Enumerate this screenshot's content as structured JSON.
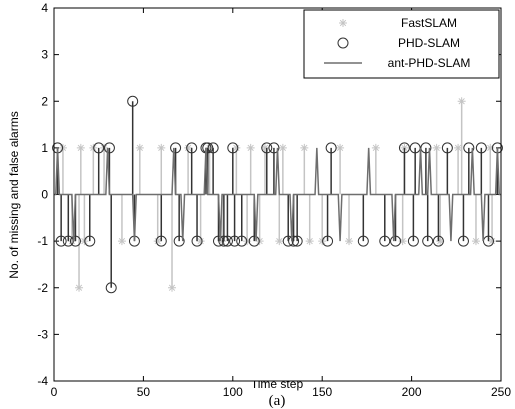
{
  "chart_data": {
    "type": "stem",
    "xlabel": "Time step",
    "ylabel": "No. of missing and false alarms",
    "caption": "(a)",
    "xlim": [
      0,
      250
    ],
    "xticks": [
      0,
      50,
      100,
      150,
      200,
      250
    ],
    "ylim": [
      -4,
      4
    ],
    "yticks": [
      -4,
      -3,
      -2,
      -1,
      0,
      1,
      2,
      3,
      4
    ],
    "legend": "top-right",
    "series": [
      {
        "name": "FastSLAM",
        "type": "stem",
        "marker": "asterisk",
        "color": "#c4c4c4",
        "x": [
          5,
          10,
          14,
          15,
          17,
          22,
          28,
          38,
          48,
          58,
          60,
          66,
          75,
          82,
          87,
          94,
          102,
          108,
          110,
          115,
          118,
          126,
          128,
          140,
          143,
          150,
          160,
          165,
          180,
          195,
          196,
          214,
          216,
          226,
          228,
          236,
          244,
          245
        ],
        "values": [
          1,
          -1,
          -2,
          1,
          -1,
          1,
          1,
          -1,
          1,
          -1,
          1,
          -2,
          1,
          -1,
          1,
          -1,
          1,
          -1,
          1,
          -1,
          1,
          -1,
          1,
          1,
          -1,
          -1,
          1,
          -1,
          1,
          -1,
          1,
          1,
          -1,
          1,
          2,
          -1,
          1,
          -1
        ]
      },
      {
        "name": "PHD-SLAM",
        "type": "stem",
        "marker": "circle",
        "color": "#333333",
        "x": [
          2,
          4,
          8,
          12,
          20,
          25,
          31,
          32,
          44,
          45,
          60,
          68,
          70,
          77,
          80,
          85,
          86,
          89,
          92,
          95,
          97,
          100,
          101,
          105,
          112,
          119,
          123,
          131,
          134,
          136,
          153,
          155,
          173,
          185,
          191,
          196,
          201,
          202,
          208,
          209,
          215,
          220,
          229,
          232,
          239,
          243,
          248
        ],
        "values": [
          1,
          -1,
          -1,
          -1,
          -1,
          1,
          1,
          -2,
          2,
          -1,
          -1,
          1,
          -1,
          1,
          -1,
          1,
          1,
          1,
          -1,
          -1,
          -1,
          1,
          -1,
          -1,
          -1,
          1,
          1,
          -1,
          -1,
          -1,
          -1,
          1,
          -1,
          -1,
          -1,
          1,
          -1,
          1,
          1,
          -1,
          -1,
          1,
          -1,
          1,
          1,
          -1,
          1
        ]
      },
      {
        "name": "ant-PHD-SLAM",
        "type": "line",
        "color": "#6e6e6e",
        "x": [
          0,
          1,
          2,
          3,
          10,
          11,
          12,
          29,
          30,
          31,
          44,
          45,
          46,
          66,
          67,
          68,
          71,
          72,
          73,
          84,
          85,
          86,
          92,
          93,
          94,
          112,
          113,
          114,
          124,
          125,
          126,
          132,
          133,
          134,
          146,
          147,
          148,
          159,
          160,
          161,
          175,
          176,
          177,
          189,
          190,
          191,
          204,
          205,
          206,
          209,
          210,
          211,
          221,
          222,
          223,
          233,
          234,
          235,
          239,
          240,
          241,
          247,
          248,
          249,
          250
        ],
        "values": [
          0,
          0,
          1,
          0,
          0,
          -1,
          0,
          0,
          1,
          0,
          0,
          -1,
          0,
          0,
          1,
          0,
          0,
          -1,
          0,
          0,
          1,
          0,
          0,
          -1,
          0,
          0,
          -1,
          0,
          0,
          1,
          0,
          0,
          -1,
          0,
          0,
          1,
          0,
          0,
          -1,
          0,
          0,
          1,
          0,
          0,
          -1,
          0,
          0,
          1,
          0,
          0,
          1,
          0,
          0,
          -1,
          0,
          0,
          1,
          0,
          0,
          -1,
          0,
          0,
          1,
          0,
          0
        ]
      }
    ]
  }
}
